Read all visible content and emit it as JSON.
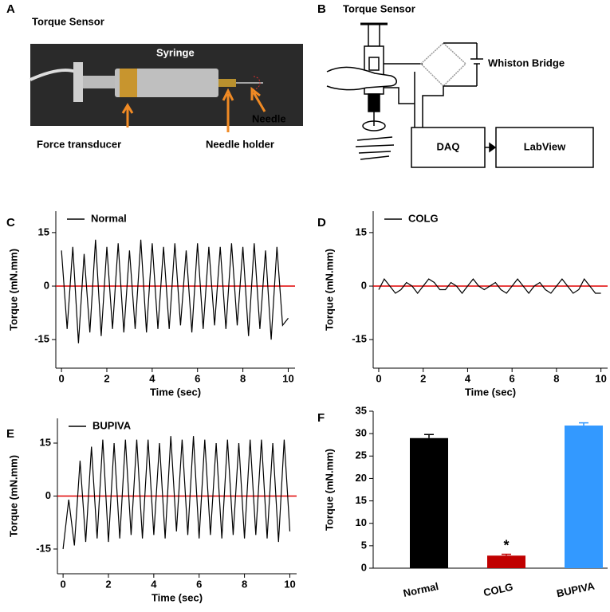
{
  "panel_labels": [
    "A",
    "B",
    "C",
    "D",
    "E",
    "F"
  ],
  "photo": {
    "title": "Torque Sensor",
    "labels": [
      "Syringe",
      "Force transducer",
      "Needle holder",
      "Needle"
    ]
  },
  "diagram": {
    "title": "Torque Sensor",
    "bridge": "Whiston Bridge",
    "nodes": [
      "DAQ",
      "LabView"
    ]
  },
  "chart_data": [
    {
      "type": "line",
      "xlabel": "Time (sec)",
      "ylabel": "Torque (mN.mm)",
      "x": [
        0,
        0.25,
        0.5,
        0.75,
        1,
        1.25,
        1.5,
        1.75,
        2,
        2.25,
        2.5,
        2.75,
        3,
        3.25,
        3.5,
        3.75,
        4,
        4.25,
        4.5,
        4.75,
        5,
        5.25,
        5.5,
        5.75,
        6,
        6.25,
        6.5,
        6.75,
        7,
        7.25,
        7.5,
        7.75,
        8,
        8.25,
        8.5,
        8.75,
        9,
        9.25,
        9.5,
        9.75,
        10
      ],
      "series": [
        {
          "name": "Normal",
          "color": "#000000",
          "values": [
            10,
            -12,
            11,
            -16,
            9,
            -13,
            13,
            -14,
            11,
            -12,
            12,
            -13,
            10,
            -12,
            13,
            -13,
            12,
            -12,
            11,
            -12,
            12,
            -11,
            10,
            -13,
            12,
            -12,
            11,
            -11,
            11,
            -12,
            12,
            -11,
            11,
            -14,
            12,
            -12,
            10,
            -15,
            11,
            -11,
            -9
          ]
        }
      ],
      "reference_line": {
        "value": 0,
        "color": "#e00000"
      },
      "xlim": [
        -0.25,
        10.3
      ],
      "xticks": [
        0,
        2,
        4,
        6,
        8,
        10
      ],
      "ylim": [
        -23,
        21
      ],
      "yticks": [
        -15,
        0,
        15
      ]
    },
    {
      "type": "line",
      "xlabel": "Time (sec)",
      "ylabel": "Torque (mN.mm)",
      "x": [
        0,
        0.25,
        0.5,
        0.75,
        1,
        1.25,
        1.5,
        1.75,
        2,
        2.25,
        2.5,
        2.75,
        3,
        3.25,
        3.5,
        3.75,
        4,
        4.25,
        4.5,
        4.75,
        5,
        5.25,
        5.5,
        5.75,
        6,
        6.25,
        6.5,
        6.75,
        7,
        7.25,
        7.5,
        7.75,
        8,
        8.25,
        8.5,
        8.75,
        9,
        9.25,
        9.5,
        9.75,
        10
      ],
      "series": [
        {
          "name": "COLG",
          "color": "#000000",
          "values": [
            -1,
            2,
            0,
            -2,
            -1,
            1,
            0,
            -2,
            0,
            2,
            1,
            -1,
            -1,
            1,
            0,
            -2,
            0,
            2,
            0,
            -1,
            0,
            1,
            -1,
            -2,
            0,
            2,
            0,
            -2,
            0,
            1,
            -1,
            -2,
            0,
            2,
            0,
            -2,
            -1,
            2,
            0,
            -2,
            -2
          ]
        }
      ],
      "reference_line": {
        "value": 0,
        "color": "#e00000"
      },
      "xlim": [
        -0.25,
        10.3
      ],
      "xticks": [
        0,
        2,
        4,
        6,
        8,
        10
      ],
      "ylim": [
        -23,
        21
      ],
      "yticks": [
        -15,
        0,
        15
      ]
    },
    {
      "type": "line",
      "xlabel": "Time (sec)",
      "ylabel": "Torque (mN.mm)",
      "x": [
        0,
        0.25,
        0.5,
        0.75,
        1,
        1.25,
        1.5,
        1.75,
        2,
        2.25,
        2.5,
        2.75,
        3,
        3.25,
        3.5,
        3.75,
        4,
        4.25,
        4.5,
        4.75,
        5,
        5.25,
        5.5,
        5.75,
        6,
        6.25,
        6.5,
        6.75,
        7,
        7.25,
        7.5,
        7.75,
        8,
        8.25,
        8.5,
        8.75,
        9,
        9.25,
        9.5,
        9.75,
        10
      ],
      "series": [
        {
          "name": "BUPIVA",
          "color": "#000000",
          "values": [
            -15,
            -1,
            -14,
            10,
            -13,
            14,
            -12,
            16,
            -13,
            15,
            -12,
            16,
            -11,
            16,
            -12,
            16,
            -11,
            15,
            -12,
            17,
            -10,
            16,
            -11,
            17,
            -12,
            16,
            -11,
            15,
            -12,
            16,
            -11,
            15,
            -12,
            16,
            -11,
            16,
            -12,
            15,
            -13,
            16,
            -10
          ]
        }
      ],
      "reference_line": {
        "value": 0,
        "color": "#e00000"
      },
      "xlim": [
        -0.25,
        10.3
      ],
      "xticks": [
        0,
        2,
        4,
        6,
        8,
        10
      ],
      "ylim": [
        -22,
        22
      ],
      "yticks": [
        -15,
        0,
        15
      ]
    },
    {
      "type": "bar",
      "ylabel": "Torque (mN.mm)",
      "categories": [
        "Normal",
        "COLG",
        "BUPIVA"
      ],
      "values": [
        29,
        2.8,
        31.8
      ],
      "errors": [
        0.8,
        0.3,
        0.6
      ],
      "colors": [
        "#000000",
        "#c00000",
        "#3399ff"
      ],
      "annotations": [
        {
          "text": "*",
          "category": "COLG"
        }
      ],
      "ylim": [
        0,
        35
      ],
      "yticks": [
        0,
        5,
        10,
        15,
        20,
        25,
        30,
        35
      ]
    }
  ]
}
